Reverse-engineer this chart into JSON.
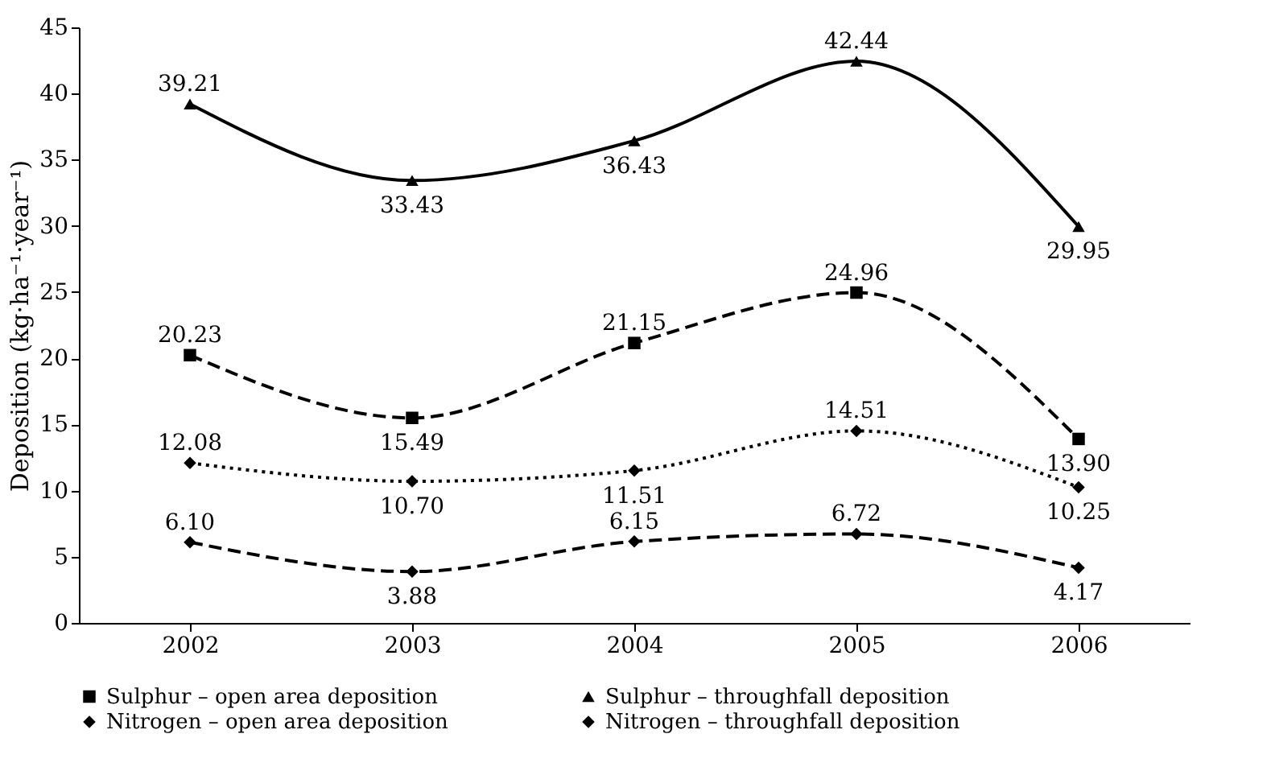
{
  "chart_data": {
    "type": "line",
    "ylabel": "Deposition (kg·ha⁻¹·year⁻¹)",
    "categories": [
      "2002",
      "2003",
      "2004",
      "2005",
      "2006"
    ],
    "ylim": [
      0,
      45
    ],
    "yticks": [
      0,
      5,
      10,
      15,
      20,
      25,
      30,
      35,
      40,
      45
    ],
    "grid": false,
    "legend": "bottom",
    "series": [
      {
        "name": "Sulphur – open area deposition",
        "color": "#000000",
        "marker": "square",
        "line_style": "dashed",
        "values": [
          20.23,
          15.49,
          21.15,
          24.96,
          13.9
        ],
        "value_labels": [
          "20.23",
          "15.49",
          "21.15",
          "24.96",
          "13.90"
        ]
      },
      {
        "name": "Sulphur  –  throughfall deposition",
        "color": "#000000",
        "marker": "triangle",
        "line_style": "solid",
        "values": [
          39.21,
          33.43,
          36.43,
          42.44,
          29.95
        ],
        "value_labels": [
          "39.21",
          "33.43",
          "36.43",
          "42.44",
          "29.95"
        ]
      },
      {
        "name": "Nitrogen – open area deposition",
        "color": "#000000",
        "marker": "diamond",
        "line_style": "dashed",
        "values": [
          6.1,
          3.88,
          6.15,
          6.72,
          4.17
        ],
        "value_labels": [
          "6.10",
          "3.88",
          "6.15",
          "6.72",
          "4.17"
        ]
      },
      {
        "name": "Nitrogen – throughfall deposition",
        "color": "#000000",
        "marker": "diamond",
        "line_style": "dotted",
        "values": [
          12.08,
          10.7,
          11.51,
          14.51,
          10.25
        ],
        "value_labels": [
          "12.08",
          "10.70",
          "11.51",
          "14.51",
          "10.25"
        ]
      }
    ]
  }
}
